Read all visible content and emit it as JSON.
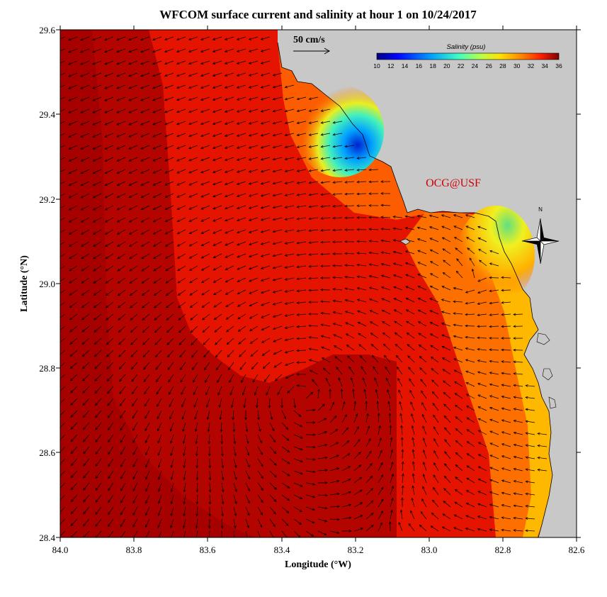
{
  "title": "WFCOM surface current and salinity at hour 1 on 10/24/2017",
  "xaxis": {
    "label": "Longitude (°W)",
    "ticks": [
      "84.0",
      "83.8",
      "83.6",
      "83.4",
      "83.2",
      "83.0",
      "82.8",
      "82.6"
    ]
  },
  "yaxis": {
    "label": "Latitude (°N)",
    "ticks": [
      "29.6",
      "29.4",
      "29.2",
      "29.0",
      "28.8",
      "28.6",
      "28.4"
    ]
  },
  "scale": {
    "label": "50 cm/s"
  },
  "colorbar": {
    "title": "Salinity (psu)",
    "tick_labels": [
      "10",
      "12",
      "14",
      "16",
      "18",
      "20",
      "22",
      "24",
      "26",
      "28",
      "30",
      "32",
      "34",
      "36"
    ],
    "min": 10,
    "max": 36
  },
  "watermark": "OCG@USF",
  "compass": {
    "label": "N"
  },
  "colors": {
    "land": "#c8c8c8",
    "deep_water": "#a80000",
    "high_salinity": "#e01000",
    "mid_salinity": "#ff7000",
    "low_salinity": "#f0e020",
    "fresh_plume": "#0030d0",
    "watermark": "#d00000"
  }
}
